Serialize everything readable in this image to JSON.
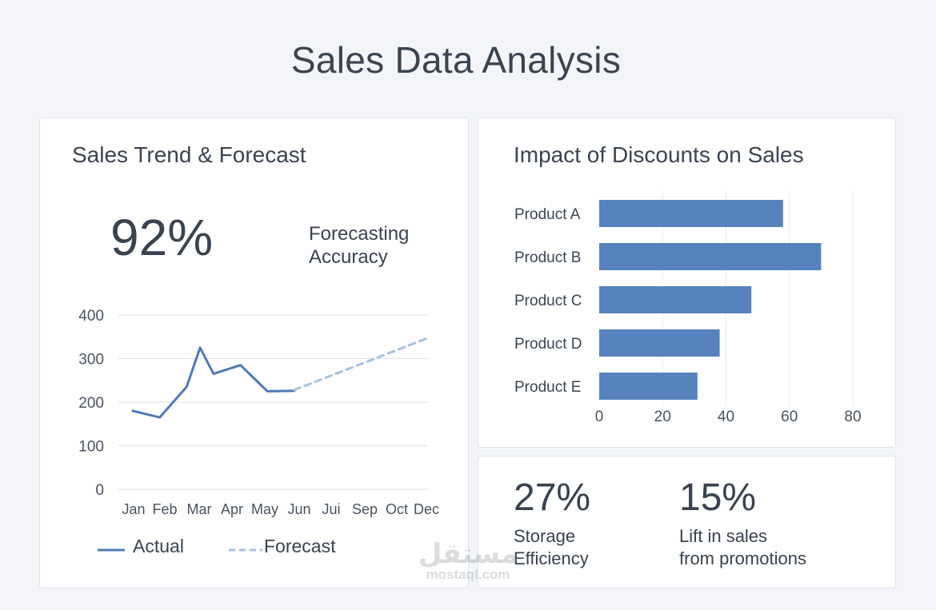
{
  "page": {
    "title": "Sales Data Analysis"
  },
  "trend_card": {
    "title": "Sales Trend & Forecast",
    "big_number": "92%",
    "big_caption": "Forecasting Accuracy",
    "legend": {
      "actual": "Actual",
      "forecast": "Forecast"
    }
  },
  "discount_card": {
    "title": "Impact of Discounts on Sales"
  },
  "kpis": [
    {
      "value": "27%",
      "label_line1": "Storage",
      "label_line2": "Efficiency"
    },
    {
      "value": "15%",
      "label_line1": "Lift in sales",
      "label_line2": "from promotions"
    }
  ],
  "watermark": {
    "logo": "مستقل",
    "url": "mostaql.com"
  },
  "colors": {
    "actual": "#4f7bb5",
    "forecast": "#a9c1e0",
    "bar": "#5682bd",
    "grid": "#dde1e6",
    "text": "#3a4553"
  },
  "chart_data": [
    {
      "type": "line",
      "title": "Sales Trend & Forecast",
      "categories": [
        "Jan",
        "Feb",
        "Mar",
        "Apr",
        "May",
        "Jun",
        "Jul",
        "Sep",
        "Oct",
        "Dec"
      ],
      "category_labels": [
        "Jan",
        "Feb",
        "Mar",
        "Apr",
        "May",
        "Jun",
        "Jui",
        "Sep",
        "Oct",
        "Dec"
      ],
      "series": [
        {
          "name": "Actual",
          "style": "solid",
          "x": [
            0,
            1,
            2,
            2.5,
            3,
            4,
            5,
            6
          ],
          "values": [
            180,
            165,
            235,
            325,
            265,
            285,
            225,
            226
          ]
        },
        {
          "name": "Forecast",
          "style": "dashed",
          "x": [
            6,
            11
          ],
          "values": [
            228,
            348
          ]
        }
      ],
      "ylim": [
        0,
        400
      ],
      "yticks": [
        0,
        100,
        200,
        300,
        400
      ],
      "grid": true,
      "legend": "bottom"
    },
    {
      "type": "bar",
      "orientation": "horizontal",
      "title": "Impact of Discounts on Sales",
      "categories": [
        "Product A",
        "Product B",
        "Product C",
        "Product D",
        "Product E"
      ],
      "values": [
        58,
        70,
        48,
        38,
        31
      ],
      "xlim": [
        0,
        80
      ],
      "xticks": [
        0,
        20,
        40,
        60,
        80
      ],
      "grid": true
    }
  ]
}
